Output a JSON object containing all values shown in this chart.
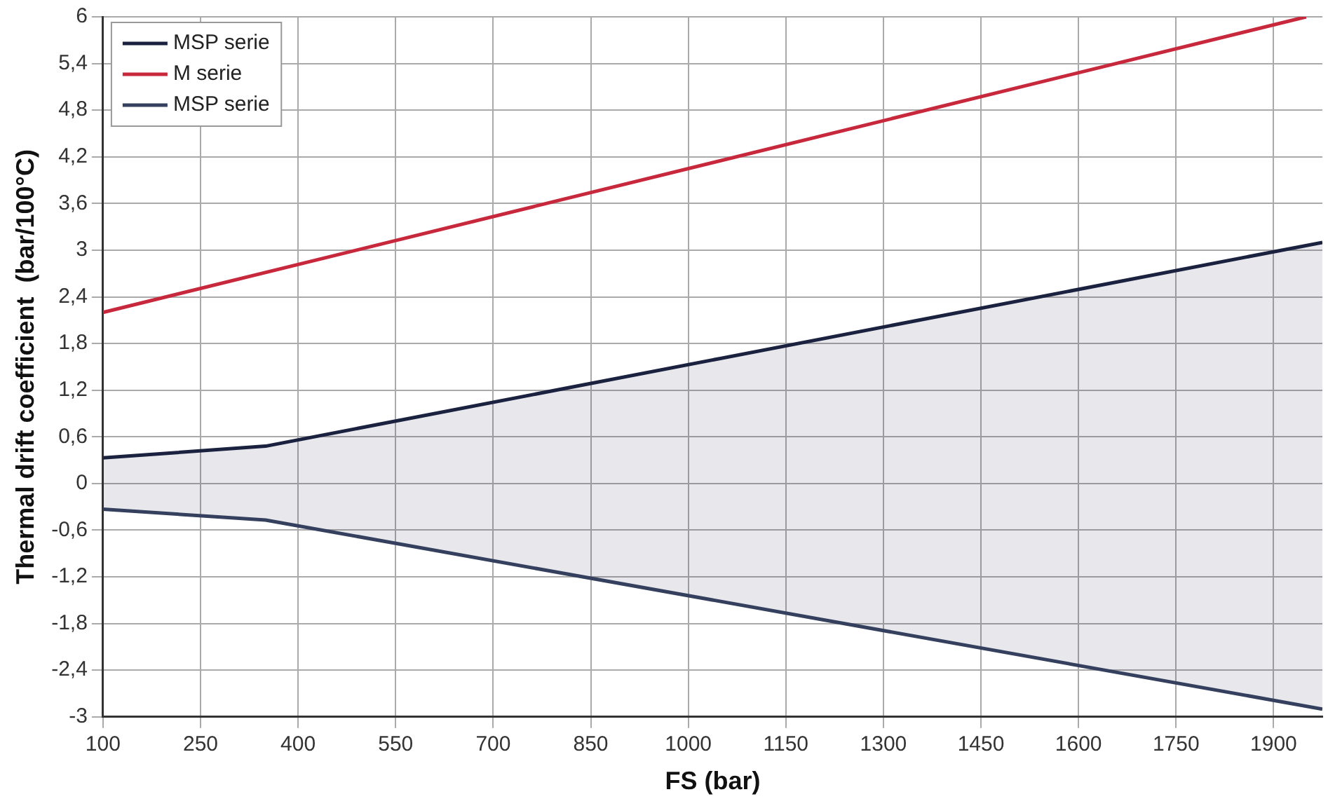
{
  "chart_data": {
    "type": "line",
    "xlabel": "FS (bar)",
    "ylabel": "Thermal drift coefficient  (bar/100°C)",
    "xlim": [
      100,
      1975
    ],
    "xticks": [
      100,
      250,
      400,
      550,
      700,
      850,
      1000,
      1150,
      1300,
      1450,
      1600,
      1750,
      1900
    ],
    "ylim": [
      -3,
      6
    ],
    "yticks": [
      {
        "value": -3,
        "label": "-3"
      },
      {
        "value": -2.4,
        "label": "-2,4"
      },
      {
        "value": -1.8,
        "label": "-1,8"
      },
      {
        "value": -1.2,
        "label": "-1,2"
      },
      {
        "value": -0.6,
        "label": "-0,6"
      },
      {
        "value": 0,
        "label": "0"
      },
      {
        "value": 0.6,
        "label": "0,6"
      },
      {
        "value": 1.2,
        "label": "1,2"
      },
      {
        "value": 1.8,
        "label": "1,8"
      },
      {
        "value": 2.4,
        "label": "2,4"
      },
      {
        "value": 3,
        "label": "3"
      },
      {
        "value": 3.6,
        "label": "3,6"
      },
      {
        "value": 4.2,
        "label": "4,2"
      },
      {
        "value": 4.8,
        "label": "4,8"
      },
      {
        "value": 5.4,
        "label": "5,4"
      },
      {
        "value": 6,
        "label": "6"
      }
    ],
    "grid": true,
    "legend": "top left",
    "marker": "none",
    "line_style": "solid",
    "series": [
      {
        "name": "MSP serie",
        "color": "#1a2240",
        "x": [
          100,
          350,
          1975
        ],
        "values": [
          0.33,
          0.48,
          3.1
        ],
        "lower": [
          -0.33,
          -0.47,
          -2.9
        ],
        "upper": [
          0.33,
          0.48,
          3.1
        ]
      },
      {
        "name": "M serie",
        "color": "#c8283c",
        "x": [
          100,
          1950
        ],
        "values": [
          2.2,
          6
        ]
      },
      {
        "name": "MSP serie",
        "color": "#34405e",
        "x": [
          100,
          350,
          1975
        ],
        "values": [
          -0.33,
          -0.47,
          -2.9
        ]
      }
    ]
  }
}
